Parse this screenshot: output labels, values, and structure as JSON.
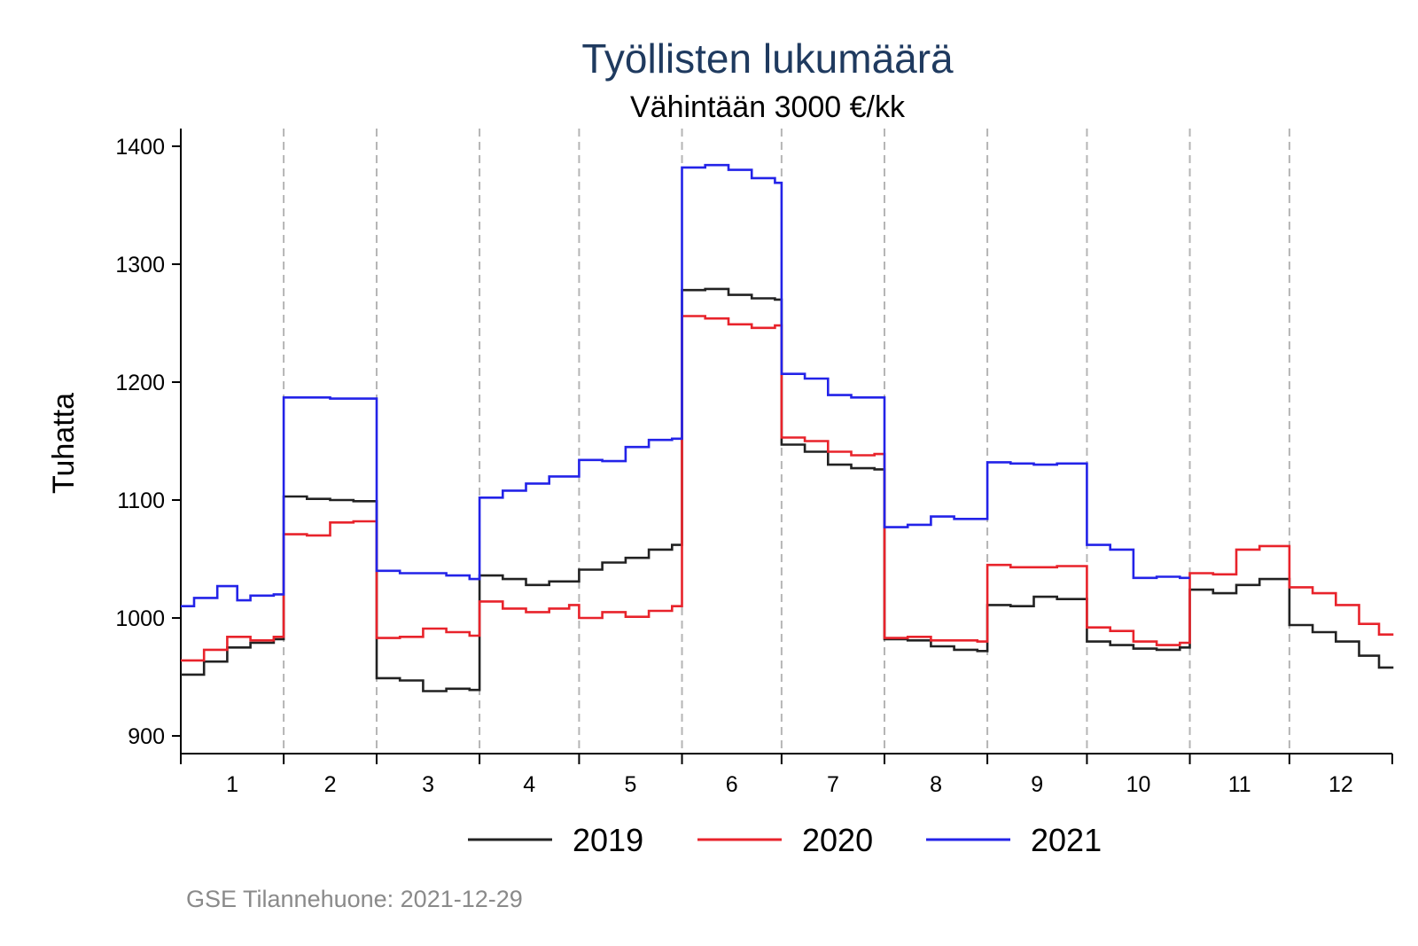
{
  "chart_data": {
    "type": "line",
    "step": true,
    "title": "Työllisten lukumäärä",
    "subtitle": "Vähintään 3000 €/kk",
    "xlabel": "",
    "ylabel": "Tuhatta",
    "ylim": [
      885,
      1415
    ],
    "yticks": [
      900,
      1000,
      1100,
      1200,
      1300,
      1400
    ],
    "xlim": [
      0,
      365
    ],
    "month_labels": [
      "1",
      "2",
      "3",
      "4",
      "5",
      "6",
      "7",
      "8",
      "9",
      "10",
      "11",
      "12"
    ],
    "month_boundaries": [
      31,
      59,
      90,
      120,
      151,
      181,
      212,
      243,
      273,
      304,
      334
    ],
    "grid": "dashed vertical lines at month boundaries",
    "legend_position": "bottom",
    "source": "GSE Tilannehuone: 2021-12-29",
    "series": [
      {
        "name": "2019",
        "color": "#222222",
        "points": [
          [
            0,
            952
          ],
          [
            7,
            963
          ],
          [
            14,
            975
          ],
          [
            21,
            979
          ],
          [
            28,
            982
          ],
          [
            31,
            1103
          ],
          [
            38,
            1101
          ],
          [
            45,
            1100
          ],
          [
            52,
            1099
          ],
          [
            59,
            949
          ],
          [
            66,
            947
          ],
          [
            73,
            938
          ],
          [
            80,
            940
          ],
          [
            87,
            939
          ],
          [
            90,
            1036
          ],
          [
            97,
            1033
          ],
          [
            104,
            1028
          ],
          [
            111,
            1031
          ],
          [
            120,
            1041
          ],
          [
            127,
            1047
          ],
          [
            134,
            1051
          ],
          [
            141,
            1058
          ],
          [
            148,
            1062
          ],
          [
            151,
            1278
          ],
          [
            158,
            1279
          ],
          [
            165,
            1274
          ],
          [
            172,
            1271
          ],
          [
            179,
            1270
          ],
          [
            181,
            1147
          ],
          [
            188,
            1141
          ],
          [
            195,
            1130
          ],
          [
            202,
            1127
          ],
          [
            209,
            1126
          ],
          [
            212,
            982
          ],
          [
            219,
            981
          ],
          [
            226,
            976
          ],
          [
            233,
            973
          ],
          [
            240,
            972
          ],
          [
            243,
            1011
          ],
          [
            250,
            1010
          ],
          [
            257,
            1018
          ],
          [
            264,
            1016
          ],
          [
            273,
            980
          ],
          [
            280,
            977
          ],
          [
            287,
            974
          ],
          [
            294,
            973
          ],
          [
            301,
            975
          ],
          [
            304,
            1024
          ],
          [
            311,
            1021
          ],
          [
            318,
            1028
          ],
          [
            325,
            1033
          ],
          [
            334,
            994
          ],
          [
            341,
            988
          ],
          [
            348,
            980
          ],
          [
            355,
            968
          ],
          [
            361,
            958
          ],
          [
            365,
            959
          ]
        ]
      },
      {
        "name": "2020",
        "color": "#e8232b",
        "points": [
          [
            0,
            964
          ],
          [
            7,
            973
          ],
          [
            14,
            984
          ],
          [
            21,
            981
          ],
          [
            28,
            984
          ],
          [
            31,
            1071
          ],
          [
            38,
            1070
          ],
          [
            45,
            1081
          ],
          [
            52,
            1082
          ],
          [
            59,
            983
          ],
          [
            66,
            984
          ],
          [
            73,
            991
          ],
          [
            80,
            988
          ],
          [
            87,
            985
          ],
          [
            90,
            1014
          ],
          [
            97,
            1008
          ],
          [
            104,
            1005
          ],
          [
            111,
            1008
          ],
          [
            117,
            1011
          ],
          [
            120,
            1000
          ],
          [
            127,
            1005
          ],
          [
            134,
            1001
          ],
          [
            141,
            1006
          ],
          [
            148,
            1010
          ],
          [
            151,
            1256
          ],
          [
            158,
            1254
          ],
          [
            165,
            1249
          ],
          [
            172,
            1246
          ],
          [
            179,
            1248
          ],
          [
            181,
            1153
          ],
          [
            188,
            1150
          ],
          [
            195,
            1141
          ],
          [
            202,
            1138
          ],
          [
            209,
            1139
          ],
          [
            212,
            983
          ],
          [
            219,
            984
          ],
          [
            226,
            981
          ],
          [
            233,
            981
          ],
          [
            240,
            980
          ],
          [
            243,
            1045
          ],
          [
            250,
            1043
          ],
          [
            257,
            1043
          ],
          [
            264,
            1044
          ],
          [
            273,
            992
          ],
          [
            280,
            989
          ],
          [
            287,
            980
          ],
          [
            294,
            977
          ],
          [
            301,
            979
          ],
          [
            304,
            1038
          ],
          [
            311,
            1037
          ],
          [
            318,
            1058
          ],
          [
            325,
            1061
          ],
          [
            334,
            1026
          ],
          [
            341,
            1021
          ],
          [
            348,
            1011
          ],
          [
            355,
            995
          ],
          [
            361,
            986
          ],
          [
            365,
            985
          ]
        ]
      },
      {
        "name": "2021",
        "color": "#2323e8",
        "points": [
          [
            0,
            1010
          ],
          [
            4,
            1017
          ],
          [
            11,
            1027
          ],
          [
            17,
            1015
          ],
          [
            21,
            1019
          ],
          [
            28,
            1020
          ],
          [
            31,
            1187
          ],
          [
            38,
            1187
          ],
          [
            45,
            1186
          ],
          [
            52,
            1186
          ],
          [
            59,
            1040
          ],
          [
            66,
            1038
          ],
          [
            73,
            1038
          ],
          [
            80,
            1036
          ],
          [
            87,
            1033
          ],
          [
            90,
            1102
          ],
          [
            97,
            1108
          ],
          [
            104,
            1114
          ],
          [
            111,
            1120
          ],
          [
            120,
            1134
          ],
          [
            127,
            1133
          ],
          [
            134,
            1145
          ],
          [
            141,
            1151
          ],
          [
            148,
            1152
          ],
          [
            151,
            1382
          ],
          [
            158,
            1384
          ],
          [
            165,
            1380
          ],
          [
            172,
            1373
          ],
          [
            179,
            1369
          ],
          [
            181,
            1207
          ],
          [
            188,
            1203
          ],
          [
            195,
            1189
          ],
          [
            202,
            1187
          ],
          [
            209,
            1187
          ],
          [
            212,
            1077
          ],
          [
            219,
            1079
          ],
          [
            226,
            1086
          ],
          [
            233,
            1084
          ],
          [
            243,
            1132
          ],
          [
            250,
            1131
          ],
          [
            257,
            1130
          ],
          [
            264,
            1131
          ],
          [
            273,
            1062
          ],
          [
            280,
            1058
          ],
          [
            287,
            1034
          ],
          [
            294,
            1035
          ],
          [
            301,
            1034
          ]
        ]
      }
    ]
  }
}
